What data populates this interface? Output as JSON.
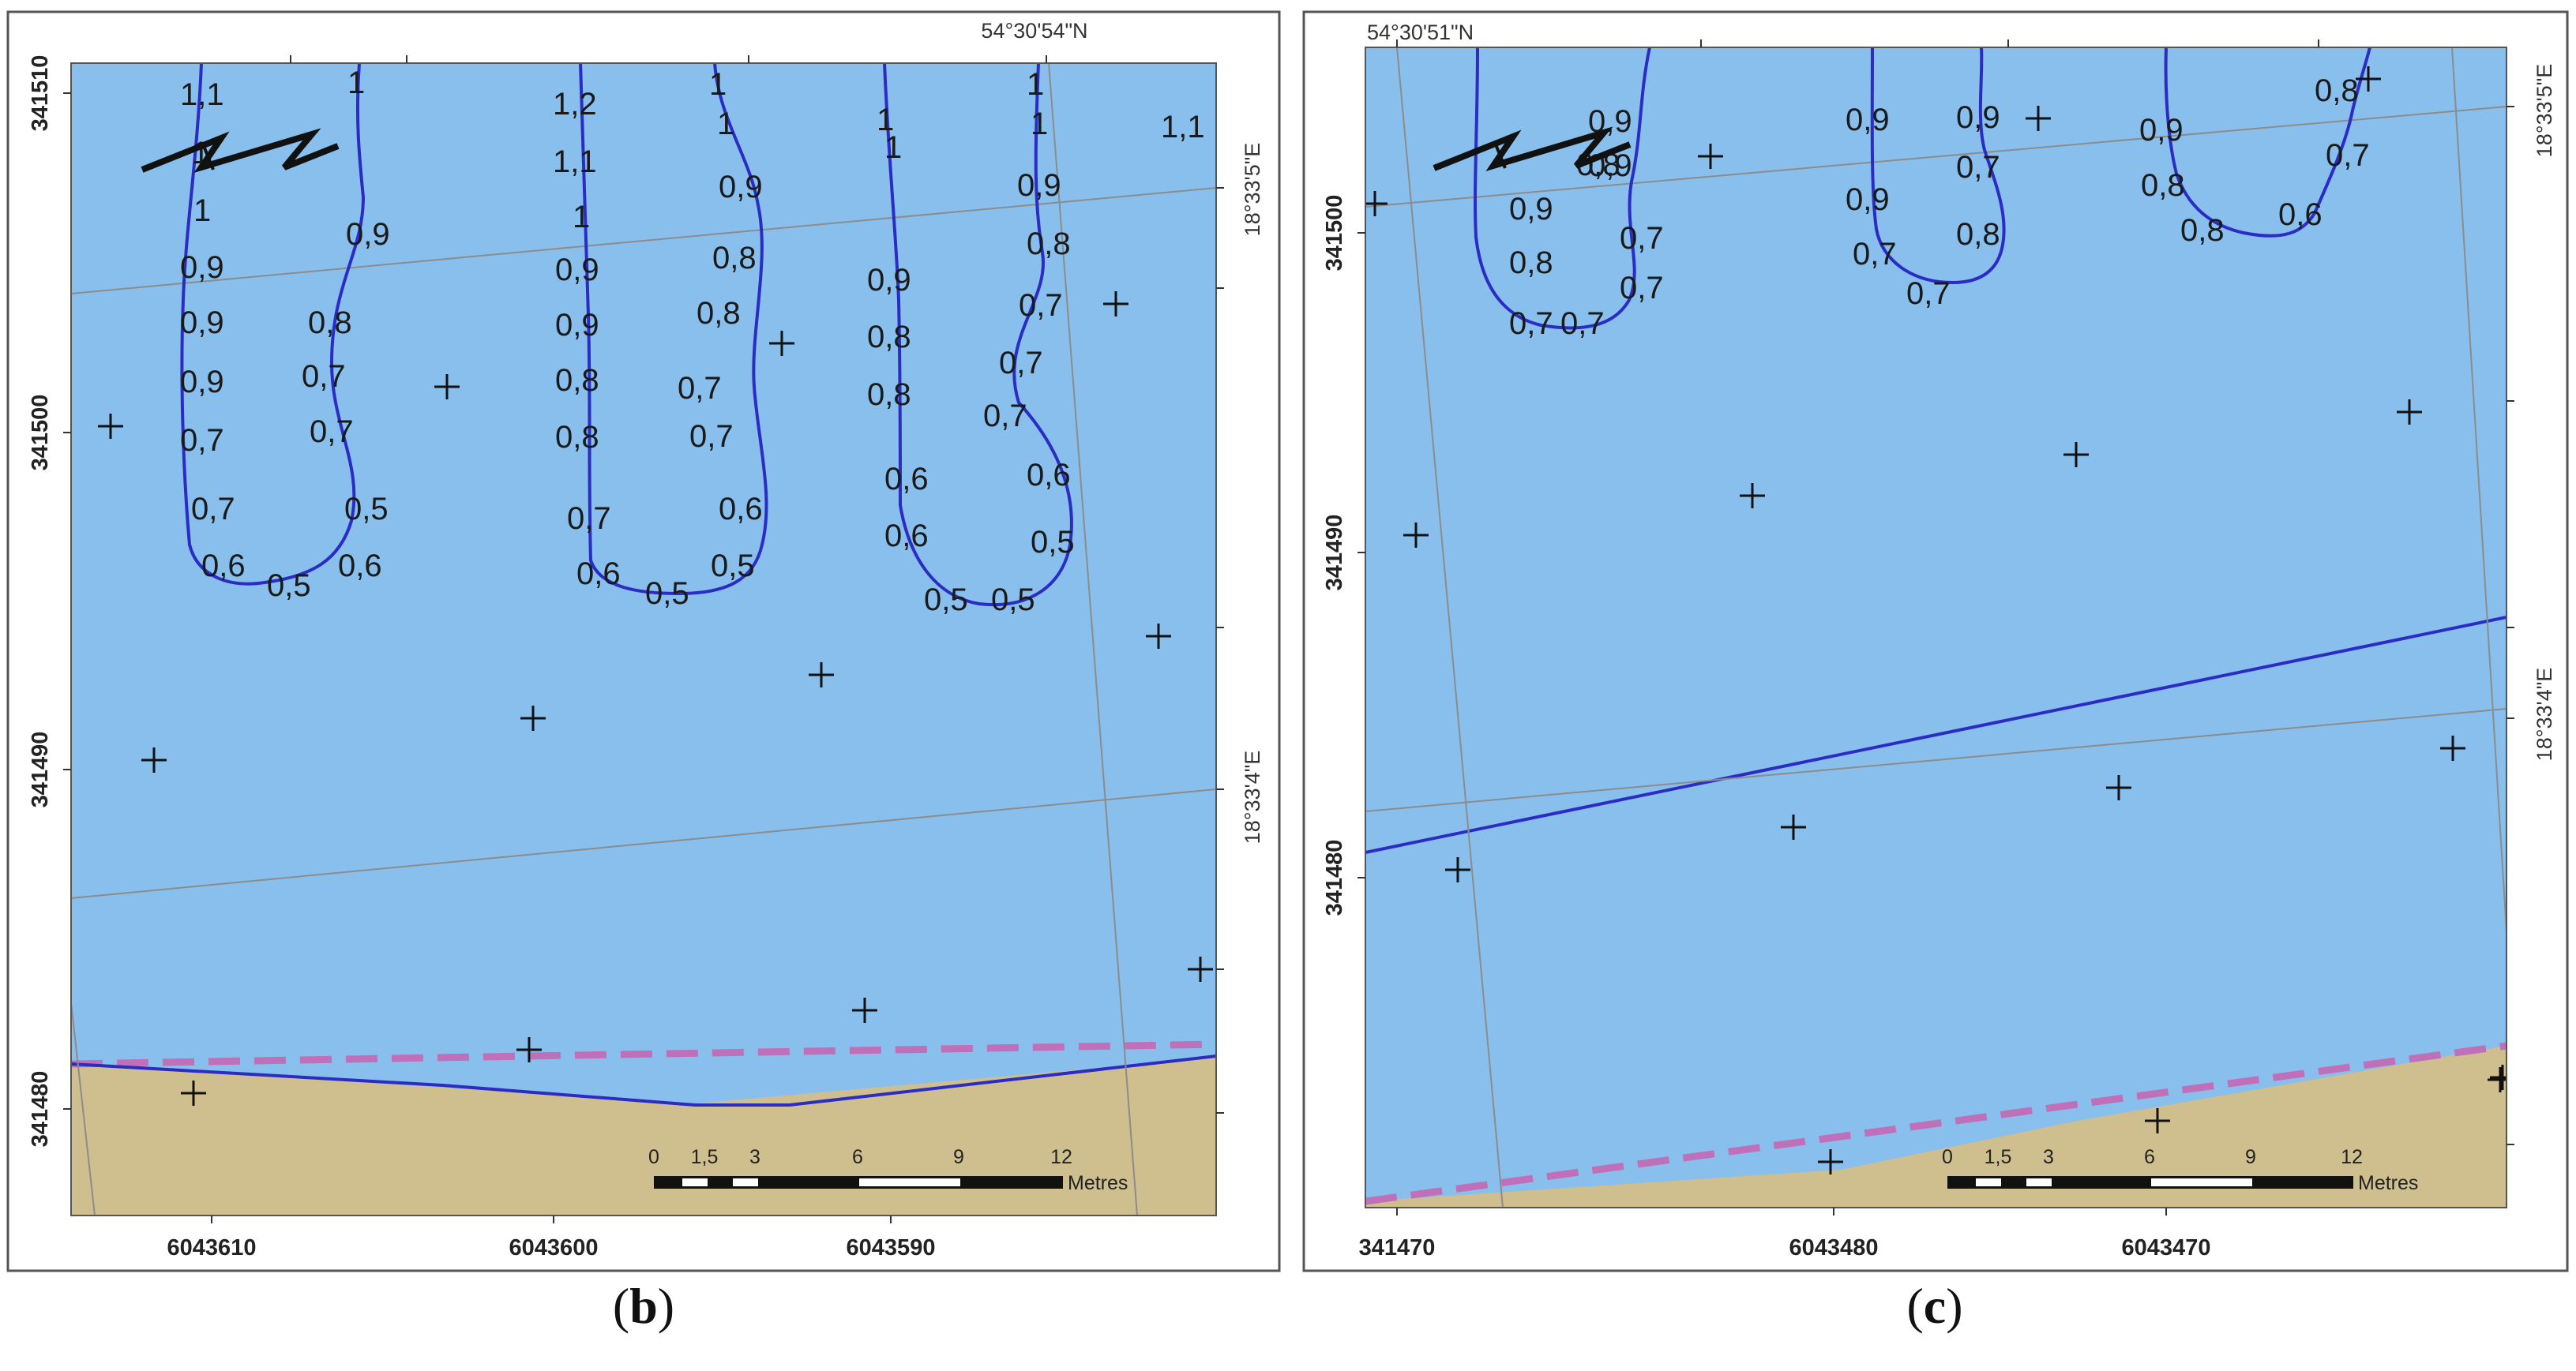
{
  "panels": [
    {
      "id": "b",
      "caption_letter": "b",
      "top_coord": "54°30'54\"N",
      "right_coords": [
        "18°33'5\"E",
        "18°33'4\"E"
      ],
      "left_ticks": [
        "341510",
        "341500",
        "341490",
        "341480"
      ],
      "bottom_ticks": [
        "6043610",
        "6043600",
        "6043590"
      ],
      "depth_labels": [
        "1,1",
        "1",
        "1",
        "0,9",
        "0,9",
        "0,9",
        "0,7",
        "0,7",
        "0,6",
        "0,5",
        "0,6",
        "0,5",
        "0,7",
        "0,7",
        "0,8",
        "0,9",
        "1",
        "1,2",
        "1,1",
        "1",
        "0,9",
        "0,9",
        "0,8",
        "0,8",
        "0,7",
        "0,6",
        "0,5",
        "0,5",
        "0,6",
        "0,7",
        "0,7",
        "0,8",
        "0,8",
        "0,9",
        "1",
        "1",
        "1",
        "1",
        "0,9",
        "0,8",
        "0,8",
        "0,6",
        "0,6",
        "0,5",
        "0,5",
        "0,5",
        "0,6",
        "0,7",
        "0,7",
        "0,7",
        "0,8",
        "0,9",
        "1",
        "1",
        "1,1"
      ],
      "scale": {
        "ticks": [
          "0",
          "1,5",
          "3",
          "6",
          "9",
          "12"
        ],
        "unit": "Metres"
      }
    },
    {
      "id": "c",
      "caption_letter": "c",
      "top_coord": "54°30'51\"N",
      "right_coords": [
        "18°33'5\"E",
        "18°33'4\"E"
      ],
      "left_ticks": [
        "341500",
        "341490",
        "341480"
      ],
      "bottom_ticks": [
        "341470",
        "6043480",
        "6043470"
      ],
      "depth_labels": [
        "0,9",
        "0,9",
        "0,8",
        "0,9",
        "0,8",
        "0,7",
        "0,7",
        "0,7",
        "0,7",
        "0,9",
        "0,9",
        "0,7",
        "0,9",
        "0,7",
        "0,8",
        "0,7",
        "0,9",
        "0,8",
        "0,7",
        "0,8",
        "0,6",
        "0,8"
      ],
      "scale": {
        "ticks": [
          "0",
          "1,5",
          "3",
          "6",
          "9",
          "12"
        ],
        "unit": "Metres"
      }
    }
  ],
  "colors": {
    "water": "#88bfec",
    "land": "#cfbf8e",
    "contour": "#2b2cc4",
    "shoreline_dash": "#c070b8",
    "grid": "#8c8c8c",
    "frame": "#555555"
  },
  "icons": [
    "north-arrow-icon",
    "crosshair-marker-icon"
  ]
}
